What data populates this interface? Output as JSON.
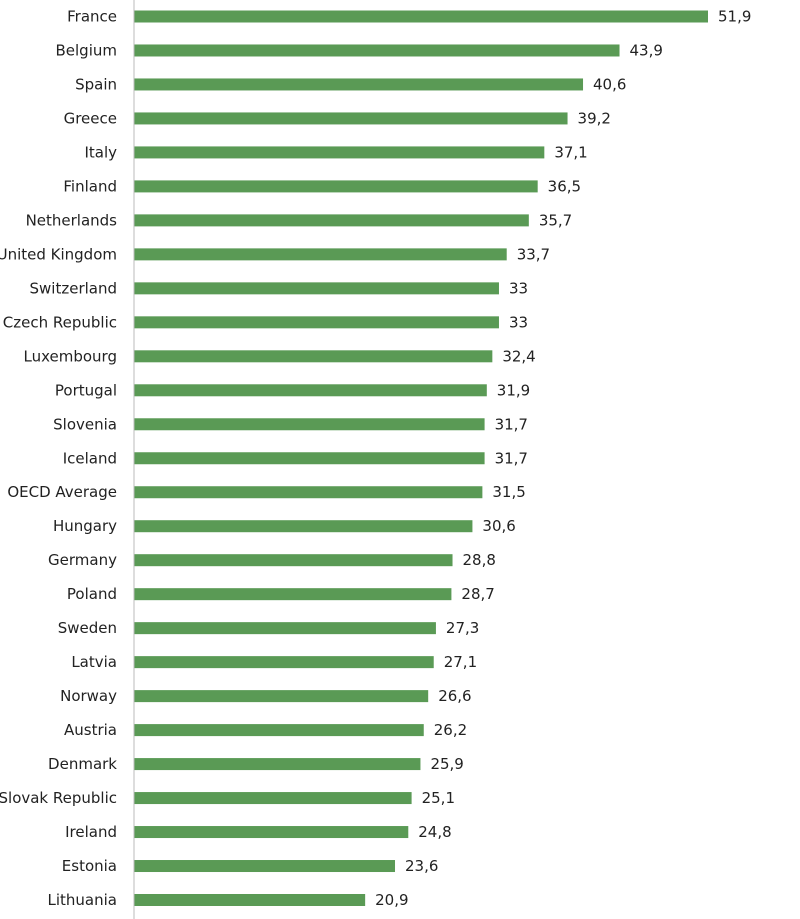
{
  "chart_data": {
    "type": "bar",
    "orientation": "horizontal",
    "title": "",
    "xlabel": "",
    "ylabel": "",
    "grid": false,
    "legend": "none",
    "bar_color": "#5a9a55",
    "axis_color": "#bbbbbb",
    "xlim": [
      0,
      55
    ],
    "categories": [
      "France",
      "Belgium",
      "Spain",
      "Greece",
      "Italy",
      "Finland",
      "Netherlands",
      "United Kingdom",
      "Switzerland",
      "Czech Republic",
      "Luxembourg",
      "Portugal",
      "Slovenia",
      "Iceland",
      "OECD Average",
      "Hungary",
      "Germany",
      "Poland",
      "Sweden",
      "Latvia",
      "Norway",
      "Austria",
      "Denmark",
      "Slovak Republic",
      "Ireland",
      "Estonia",
      "Lithuania"
    ],
    "values": [
      51.9,
      43.9,
      40.6,
      39.2,
      37.1,
      36.5,
      35.7,
      33.7,
      33,
      33,
      32.4,
      31.9,
      31.7,
      31.7,
      31.5,
      30.6,
      28.8,
      28.7,
      27.3,
      27.1,
      26.6,
      26.2,
      25.9,
      25.1,
      24.8,
      23.6,
      20.9
    ],
    "value_labels": [
      "51,9",
      "43,9",
      "40,6",
      "39,2",
      "37,1",
      "36,5",
      "35,7",
      "33,7",
      "33",
      "33",
      "32,4",
      "31,9",
      "31,7",
      "31,7",
      "31,5",
      "30,6",
      "28,8",
      "28,7",
      "27,3",
      "27,1",
      "26,6",
      "26,2",
      "25,9",
      "25,1",
      "24,8",
      "23,6",
      "20,9"
    ]
  }
}
